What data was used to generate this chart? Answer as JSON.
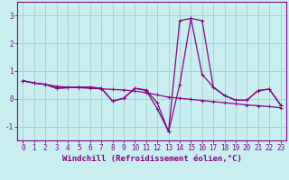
{
  "title": "",
  "xlabel": "Windchill (Refroidissement éolien,°C)",
  "ylabel": "",
  "background_color": "#c8eef0",
  "grid_color": "#a0c8c0",
  "line_color": "#880088",
  "x": [
    0,
    1,
    2,
    3,
    4,
    5,
    6,
    7,
    8,
    9,
    10,
    11,
    12,
    13,
    14,
    15,
    16,
    17,
    18,
    19,
    20,
    21,
    22,
    23
  ],
  "series1": [
    0.65,
    0.57,
    0.52,
    0.38,
    0.4,
    0.42,
    0.42,
    0.38,
    -0.08,
    0.02,
    0.38,
    0.32,
    -0.15,
    -1.18,
    2.82,
    2.9,
    0.88,
    0.42,
    0.12,
    -0.05,
    -0.05,
    0.3,
    0.35,
    -0.22
  ],
  "series2": [
    0.65,
    0.57,
    0.52,
    0.38,
    0.4,
    0.42,
    0.42,
    0.38,
    -0.08,
    0.02,
    0.38,
    0.3,
    -0.36,
    -1.18,
    0.52,
    2.9,
    2.82,
    0.42,
    0.12,
    -0.05,
    -0.05,
    0.3,
    0.35,
    -0.22
  ],
  "series3": [
    0.65,
    0.57,
    0.52,
    0.45,
    0.42,
    0.4,
    0.38,
    0.36,
    0.34,
    0.32,
    0.28,
    0.22,
    0.14,
    0.06,
    0.02,
    -0.02,
    -0.06,
    -0.1,
    -0.14,
    -0.18,
    -0.22,
    -0.25,
    -0.28,
    -0.32
  ],
  "ylim": [
    -1.5,
    3.5
  ],
  "xlim": [
    -0.5,
    23.5
  ],
  "yticks": [
    -1,
    0,
    1,
    2,
    3
  ],
  "xticks": [
    0,
    1,
    2,
    3,
    4,
    5,
    6,
    7,
    8,
    9,
    10,
    11,
    12,
    13,
    14,
    15,
    16,
    17,
    18,
    19,
    20,
    21,
    22,
    23
  ],
  "tick_fontsize": 5.5,
  "xlabel_fontsize": 6.5
}
